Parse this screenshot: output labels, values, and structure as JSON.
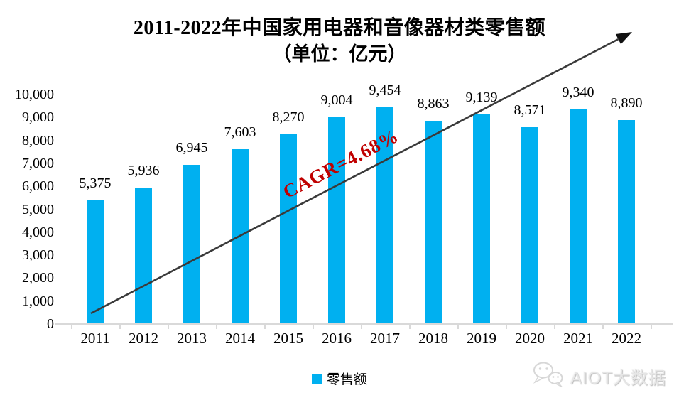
{
  "chart_data": {
    "type": "bar",
    "title": "2011-2022年中国家用电器和音像器材类零售额",
    "subtitle": "（单位：亿元）",
    "categories": [
      "2011",
      "2012",
      "2013",
      "2014",
      "2015",
      "2016",
      "2017",
      "2018",
      "2019",
      "2020",
      "2021",
      "2022"
    ],
    "series": [
      {
        "name": "零售额",
        "values": [
          5375,
          5936,
          6945,
          7603,
          8270,
          9004,
          9454,
          8863,
          9139,
          8571,
          9340,
          8890
        ]
      }
    ],
    "value_labels": [
      "5,375",
      "5,936",
      "6,945",
      "7,603",
      "8,270",
      "9,004",
      "9,454",
      "8,863",
      "9,139",
      "8,571",
      "9,340",
      "8,890"
    ],
    "xlabel": "",
    "ylabel": "",
    "ylim": [
      0,
      10000
    ],
    "ytick_step": 1000,
    "ytick_labels": [
      "0",
      "1,000",
      "2,000",
      "3,000",
      "4,000",
      "5,000",
      "6,000",
      "7,000",
      "8,000",
      "9,000",
      "10,000"
    ],
    "grid": false,
    "legend_position": "bottom",
    "legend_label": "零售额",
    "annotation": {
      "text": "CAGR=4.68%",
      "color": "#C00000"
    },
    "bar_color": "#00B0F0",
    "axis_color": "#D9D9D9",
    "trend_arrow_color": "#3A3A3A"
  },
  "watermark": {
    "text": "AIOT大数据",
    "icon": "wechat-icon"
  }
}
